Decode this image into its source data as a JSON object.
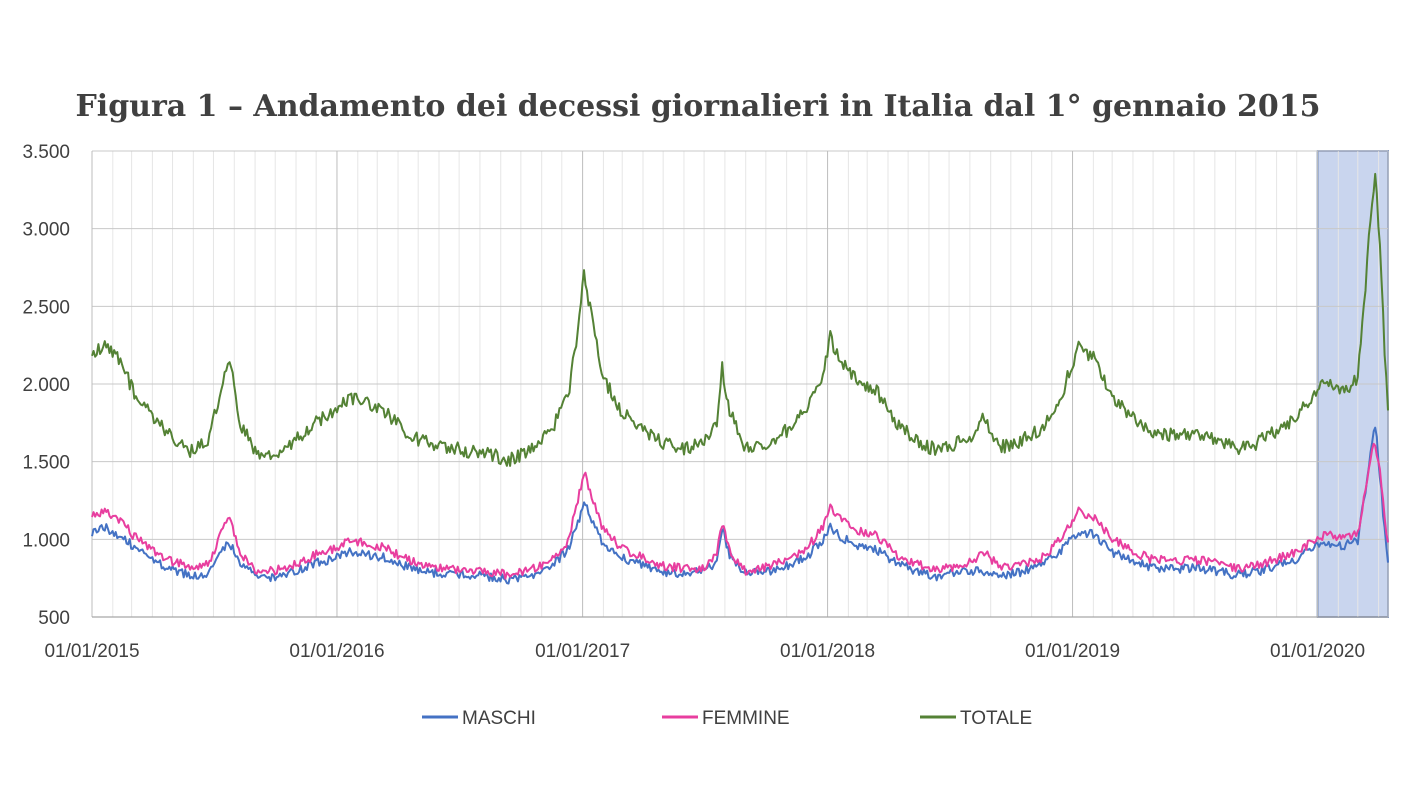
{
  "chart_data": {
    "type": "line",
    "title": "Figura 1 – Andamento dei decessi giornalieri in Italia dal 1° gennaio 2015",
    "xlabel": "",
    "ylabel": "",
    "xlim": [
      "2015-01-01",
      "2020-04-15"
    ],
    "ylim": [
      500,
      3500
    ],
    "yticks": [
      500,
      1000,
      1500,
      2000,
      2500,
      3000,
      3500
    ],
    "ytick_labels": [
      "500",
      "1.000",
      "1.500",
      "2.000",
      "2.500",
      "3.000",
      "3.500"
    ],
    "xticks": [
      "2015-01-01",
      "2016-01-01",
      "2017-01-01",
      "2018-01-01",
      "2019-01-01",
      "2020-01-01"
    ],
    "xtick_labels": [
      "01/01/2015",
      "01/01/2016",
      "01/01/2017",
      "01/01/2018",
      "01/01/2019",
      "01/01/2020"
    ],
    "grid": true,
    "legend": "bottom-center",
    "highlight": {
      "from": "2020-01-01",
      "to": "2020-04-15",
      "fill": "#c9d5ee",
      "stroke": "#2f4f8f"
    },
    "series": [
      {
        "name": "MASCHI",
        "color": "#4472c4",
        "points": [
          [
            "2015-01-01",
            1040
          ],
          [
            "2015-01-20",
            1080
          ],
          [
            "2015-02-10",
            1030
          ],
          [
            "2015-03-05",
            950
          ],
          [
            "2015-04-01",
            870
          ],
          [
            "2015-05-01",
            800
          ],
          [
            "2015-06-01",
            760
          ],
          [
            "2015-06-25",
            790
          ],
          [
            "2015-07-05",
            870
          ],
          [
            "2015-07-15",
            950
          ],
          [
            "2015-07-25",
            980
          ],
          [
            "2015-08-10",
            850
          ],
          [
            "2015-09-01",
            760
          ],
          [
            "2015-10-01",
            760
          ],
          [
            "2015-11-01",
            800
          ],
          [
            "2015-12-01",
            850
          ],
          [
            "2016-01-01",
            880
          ],
          [
            "2016-01-20",
            920
          ],
          [
            "2016-02-15",
            900
          ],
          [
            "2016-03-15",
            880
          ],
          [
            "2016-04-15",
            820
          ],
          [
            "2016-05-15",
            790
          ],
          [
            "2016-06-15",
            780
          ],
          [
            "2016-07-15",
            770
          ],
          [
            "2016-08-15",
            760
          ],
          [
            "2016-09-15",
            740
          ],
          [
            "2016-10-15",
            770
          ],
          [
            "2016-11-15",
            830
          ],
          [
            "2016-12-10",
            930
          ],
          [
            "2016-12-25",
            1100
          ],
          [
            "2017-01-03",
            1250
          ],
          [
            "2017-01-12",
            1160
          ],
          [
            "2017-02-01",
            970
          ],
          [
            "2017-03-01",
            880
          ],
          [
            "2017-04-01",
            830
          ],
          [
            "2017-05-01",
            790
          ],
          [
            "2017-06-01",
            780
          ],
          [
            "2017-07-01",
            790
          ],
          [
            "2017-07-20",
            860
          ],
          [
            "2017-07-28",
            1080
          ],
          [
            "2017-08-08",
            900
          ],
          [
            "2017-09-01",
            780
          ],
          [
            "2017-10-01",
            790
          ],
          [
            "2017-11-01",
            830
          ],
          [
            "2017-12-01",
            890
          ],
          [
            "2017-12-25",
            990
          ],
          [
            "2018-01-05",
            1080
          ],
          [
            "2018-01-20",
            1020
          ],
          [
            "2018-02-15",
            950
          ],
          [
            "2018-03-15",
            930
          ],
          [
            "2018-04-15",
            850
          ],
          [
            "2018-05-15",
            790
          ],
          [
            "2018-06-15",
            760
          ],
          [
            "2018-07-15",
            790
          ],
          [
            "2018-08-15",
            800
          ],
          [
            "2018-09-15",
            770
          ],
          [
            "2018-10-15",
            790
          ],
          [
            "2018-11-15",
            830
          ],
          [
            "2018-12-15",
            930
          ],
          [
            "2019-01-10",
            1050
          ],
          [
            "2019-02-01",
            1030
          ],
          [
            "2019-03-01",
            920
          ],
          [
            "2019-04-01",
            860
          ],
          [
            "2019-05-01",
            820
          ],
          [
            "2019-06-01",
            810
          ],
          [
            "2019-07-01",
            820
          ],
          [
            "2019-08-01",
            800
          ],
          [
            "2019-09-01",
            770
          ],
          [
            "2019-10-01",
            790
          ],
          [
            "2019-11-01",
            830
          ],
          [
            "2019-12-01",
            870
          ],
          [
            "2020-01-01",
            960
          ],
          [
            "2020-01-20",
            970
          ],
          [
            "2020-02-10",
            960
          ],
          [
            "2020-03-01",
            990
          ],
          [
            "2020-03-10",
            1250
          ],
          [
            "2020-03-20",
            1550
          ],
          [
            "2020-03-27",
            1740
          ],
          [
            "2020-04-03",
            1420
          ],
          [
            "2020-04-10",
            1050
          ],
          [
            "2020-04-15",
            850
          ]
        ]
      },
      {
        "name": "FEMMINE",
        "color": "#e83e9f",
        "points": [
          [
            "2015-01-01",
            1160
          ],
          [
            "2015-01-20",
            1180
          ],
          [
            "2015-02-10",
            1130
          ],
          [
            "2015-03-05",
            1020
          ],
          [
            "2015-04-01",
            930
          ],
          [
            "2015-05-01",
            860
          ],
          [
            "2015-06-01",
            810
          ],
          [
            "2015-06-25",
            850
          ],
          [
            "2015-07-05",
            960
          ],
          [
            "2015-07-15",
            1080
          ],
          [
            "2015-07-25",
            1130
          ],
          [
            "2015-08-10",
            900
          ],
          [
            "2015-09-01",
            800
          ],
          [
            "2015-10-01",
            800
          ],
          [
            "2015-11-01",
            840
          ],
          [
            "2015-12-01",
            900
          ],
          [
            "2016-01-01",
            950
          ],
          [
            "2016-01-20",
            1000
          ],
          [
            "2016-02-15",
            970
          ],
          [
            "2016-03-15",
            940
          ],
          [
            "2016-04-15",
            870
          ],
          [
            "2016-05-15",
            830
          ],
          [
            "2016-06-15",
            810
          ],
          [
            "2016-07-15",
            800
          ],
          [
            "2016-08-15",
            790
          ],
          [
            "2016-09-15",
            770
          ],
          [
            "2016-10-15",
            800
          ],
          [
            "2016-11-15",
            870
          ],
          [
            "2016-12-10",
            980
          ],
          [
            "2016-12-25",
            1250
          ],
          [
            "2017-01-03",
            1430
          ],
          [
            "2017-01-12",
            1320
          ],
          [
            "2017-02-01",
            1060
          ],
          [
            "2017-03-01",
            940
          ],
          [
            "2017-04-01",
            880
          ],
          [
            "2017-05-01",
            830
          ],
          [
            "2017-06-01",
            810
          ],
          [
            "2017-07-01",
            820
          ],
          [
            "2017-07-20",
            900
          ],
          [
            "2017-07-28",
            1100
          ],
          [
            "2017-08-08",
            920
          ],
          [
            "2017-09-01",
            800
          ],
          [
            "2017-10-01",
            820
          ],
          [
            "2017-11-01",
            870
          ],
          [
            "2017-12-01",
            940
          ],
          [
            "2017-12-25",
            1080
          ],
          [
            "2018-01-05",
            1220
          ],
          [
            "2018-01-20",
            1130
          ],
          [
            "2018-02-15",
            1060
          ],
          [
            "2018-03-15",
            1020
          ],
          [
            "2018-04-15",
            900
          ],
          [
            "2018-05-15",
            840
          ],
          [
            "2018-06-15",
            810
          ],
          [
            "2018-07-15",
            830
          ],
          [
            "2018-08-10",
            880
          ],
          [
            "2018-08-20",
            930
          ],
          [
            "2018-09-15",
            820
          ],
          [
            "2018-10-15",
            840
          ],
          [
            "2018-11-15",
            880
          ],
          [
            "2018-12-15",
            1000
          ],
          [
            "2019-01-10",
            1180
          ],
          [
            "2019-02-01",
            1150
          ],
          [
            "2019-03-01",
            1000
          ],
          [
            "2019-04-01",
            920
          ],
          [
            "2019-05-01",
            870
          ],
          [
            "2019-06-01",
            860
          ],
          [
            "2019-07-01",
            870
          ],
          [
            "2019-08-01",
            850
          ],
          [
            "2019-09-01",
            810
          ],
          [
            "2019-10-01",
            830
          ],
          [
            "2019-11-01",
            870
          ],
          [
            "2019-12-01",
            920
          ],
          [
            "2020-01-01",
            1010
          ],
          [
            "2020-01-20",
            1030
          ],
          [
            "2020-02-10",
            1000
          ],
          [
            "2020-03-01",
            1040
          ],
          [
            "2020-03-10",
            1250
          ],
          [
            "2020-03-20",
            1520
          ],
          [
            "2020-03-27",
            1620
          ],
          [
            "2020-04-03",
            1450
          ],
          [
            "2020-04-10",
            1150
          ],
          [
            "2020-04-15",
            980
          ]
        ]
      },
      {
        "name": "TOTALE",
        "color": "#548235",
        "points": [
          [
            "2015-01-01",
            2200
          ],
          [
            "2015-01-20",
            2250
          ],
          [
            "2015-02-10",
            2150
          ],
          [
            "2015-03-05",
            1950
          ],
          [
            "2015-04-01",
            1800
          ],
          [
            "2015-05-01",
            1650
          ],
          [
            "2015-06-01",
            1560
          ],
          [
            "2015-06-25",
            1640
          ],
          [
            "2015-07-05",
            1850
          ],
          [
            "2015-07-15",
            2000
          ],
          [
            "2015-07-25",
            2150
          ],
          [
            "2015-08-10",
            1750
          ],
          [
            "2015-09-01",
            1560
          ],
          [
            "2015-10-01",
            1560
          ],
          [
            "2015-11-01",
            1640
          ],
          [
            "2015-12-01",
            1750
          ],
          [
            "2016-01-01",
            1830
          ],
          [
            "2016-01-20",
            1920
          ],
          [
            "2016-02-15",
            1870
          ],
          [
            "2016-03-15",
            1820
          ],
          [
            "2016-04-15",
            1680
          ],
          [
            "2016-05-15",
            1620
          ],
          [
            "2016-06-15",
            1590
          ],
          [
            "2016-07-15",
            1570
          ],
          [
            "2016-08-15",
            1550
          ],
          [
            "2016-09-15",
            1510
          ],
          [
            "2016-10-15",
            1570
          ],
          [
            "2016-11-15",
            1700
          ],
          [
            "2016-12-10",
            1910
          ],
          [
            "2016-12-25",
            2350
          ],
          [
            "2017-01-03",
            2700
          ],
          [
            "2017-01-12",
            2480
          ],
          [
            "2017-02-01",
            2030
          ],
          [
            "2017-03-01",
            1820
          ],
          [
            "2017-04-01",
            1710
          ],
          [
            "2017-05-01",
            1620
          ],
          [
            "2017-06-01",
            1590
          ],
          [
            "2017-07-01",
            1610
          ],
          [
            "2017-07-20",
            1760
          ],
          [
            "2017-07-28",
            2100
          ],
          [
            "2017-08-08",
            1820
          ],
          [
            "2017-09-01",
            1580
          ],
          [
            "2017-10-01",
            1610
          ],
          [
            "2017-11-01",
            1700
          ],
          [
            "2017-12-01",
            1830
          ],
          [
            "2017-12-25",
            2070
          ],
          [
            "2018-01-05",
            2300
          ],
          [
            "2018-01-20",
            2150
          ],
          [
            "2018-02-15",
            2010
          ],
          [
            "2018-03-15",
            1950
          ],
          [
            "2018-04-15",
            1750
          ],
          [
            "2018-05-15",
            1630
          ],
          [
            "2018-06-15",
            1570
          ],
          [
            "2018-07-15",
            1620
          ],
          [
            "2018-08-10",
            1680
          ],
          [
            "2018-08-20",
            1780
          ],
          [
            "2018-09-15",
            1590
          ],
          [
            "2018-10-15",
            1630
          ],
          [
            "2018-11-15",
            1710
          ],
          [
            "2018-12-15",
            1930
          ],
          [
            "2019-01-10",
            2230
          ],
          [
            "2019-02-01",
            2180
          ],
          [
            "2019-03-01",
            1920
          ],
          [
            "2019-04-01",
            1780
          ],
          [
            "2019-05-01",
            1690
          ],
          [
            "2019-06-01",
            1670
          ],
          [
            "2019-07-01",
            1690
          ],
          [
            "2019-08-01",
            1650
          ],
          [
            "2019-09-01",
            1580
          ],
          [
            "2019-10-01",
            1620
          ],
          [
            "2019-11-01",
            1700
          ],
          [
            "2019-12-01",
            1790
          ],
          [
            "2020-01-01",
            1970
          ],
          [
            "2020-01-20",
            2000
          ],
          [
            "2020-02-10",
            1960
          ],
          [
            "2020-03-01",
            2030
          ],
          [
            "2020-03-10",
            2500
          ],
          [
            "2020-03-20",
            3070
          ],
          [
            "2020-03-27",
            3360
          ],
          [
            "2020-04-03",
            2870
          ],
          [
            "2020-04-10",
            2200
          ],
          [
            "2020-04-15",
            1830
          ]
        ]
      }
    ]
  }
}
